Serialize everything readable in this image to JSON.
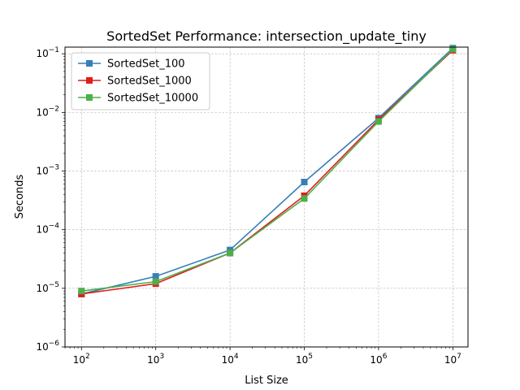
{
  "chart_data": {
    "type": "line",
    "title": "SortedSet Performance: intersection_update_tiny",
    "xlabel": "List Size",
    "ylabel": "Seconds",
    "xscale": "log",
    "yscale": "log",
    "xlim": [
      60,
      16000000
    ],
    "ylim": [
      1e-06,
      0.13
    ],
    "grid": true,
    "legend_position": "top-left",
    "x_ticks": [
      {
        "value": 100,
        "base": "10",
        "exp": "2"
      },
      {
        "value": 1000,
        "base": "10",
        "exp": "3"
      },
      {
        "value": 10000,
        "base": "10",
        "exp": "4"
      },
      {
        "value": 100000,
        "base": "10",
        "exp": "5"
      },
      {
        "value": 1000000,
        "base": "10",
        "exp": "6"
      },
      {
        "value": 10000000,
        "base": "10",
        "exp": "7"
      }
    ],
    "y_ticks": [
      {
        "value": 1e-06,
        "base": "10",
        "exp": "−6"
      },
      {
        "value": 1e-05,
        "base": "10",
        "exp": "−5"
      },
      {
        "value": 0.0001,
        "base": "10",
        "exp": "−4"
      },
      {
        "value": 0.001,
        "base": "10",
        "exp": "−3"
      },
      {
        "value": 0.01,
        "base": "10",
        "exp": "−2"
      },
      {
        "value": 0.1,
        "base": "10",
        "exp": "−1"
      }
    ],
    "x": [
      100,
      1000,
      10000,
      100000,
      1000000,
      10000000
    ],
    "series": [
      {
        "name": "SortedSet_100",
        "color": "#377eb8",
        "values": [
          8e-06,
          1.6e-05,
          4.5e-05,
          0.00065,
          0.008,
          0.125
        ]
      },
      {
        "name": "SortedSet_1000",
        "color": "#e41a1c",
        "values": [
          8e-06,
          1.2e-05,
          4e-05,
          0.00038,
          0.0075,
          0.115
        ]
      },
      {
        "name": "SortedSet_10000",
        "color": "#4daf4a",
        "values": [
          9e-06,
          1.3e-05,
          4e-05,
          0.00034,
          0.007,
          0.12
        ]
      }
    ]
  }
}
